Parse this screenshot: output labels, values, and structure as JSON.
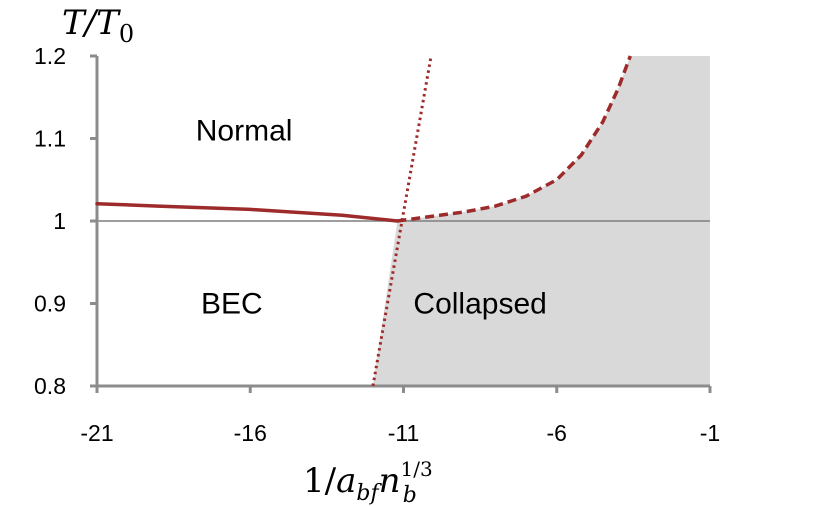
{
  "chart_data": {
    "type": "line",
    "xlabel": "1/a_bf n_b^1/3",
    "ylabel": "T/T0",
    "xlim": [
      -21,
      -1
    ],
    "ylim": [
      0.8,
      1.2
    ],
    "x_ticks": [
      "-21",
      "-16",
      "-11",
      "-6",
      "-1"
    ],
    "y_ticks": [
      "0.8",
      "0.9",
      "1",
      "1.1",
      "1.2"
    ],
    "grid": false,
    "reference_line_y": 1,
    "regions": [
      {
        "label": "Normal",
        "x": -16.2,
        "y": 1.11
      },
      {
        "label": "BEC",
        "x": -16.6,
        "y": 0.9
      },
      {
        "label": "Collapsed",
        "x": -8.5,
        "y": 0.9
      }
    ],
    "series": [
      {
        "style": "solid",
        "color": "#9e2b2b",
        "points": [
          [
            -21,
            1.021
          ],
          [
            -19,
            1.018
          ],
          [
            -16,
            1.014
          ],
          [
            -13,
            1.007
          ],
          [
            -11.2,
            1.0
          ]
        ]
      },
      {
        "style": "dashed",
        "color": "#9e2b2b",
        "points": [
          [
            -11.2,
            1.0
          ],
          [
            -10,
            1.006
          ],
          [
            -9,
            1.011
          ],
          [
            -8,
            1.018
          ],
          [
            -7,
            1.03
          ],
          [
            -6,
            1.05
          ],
          [
            -5.2,
            1.08
          ],
          [
            -4.5,
            1.12
          ],
          [
            -4,
            1.16
          ],
          [
            -3.7,
            1.19
          ],
          [
            -3.6,
            1.2
          ]
        ]
      },
      {
        "style": "dotted",
        "color": "#9e2b2b",
        "points": [
          [
            -12.0,
            0.8
          ],
          [
            -10.1,
            1.2
          ]
        ]
      }
    ],
    "shaded_region": {
      "color": "#d9d9d9",
      "description": "collapsed",
      "lower_y": 0.8,
      "left_boundary": [
        [
          -12.0,
          0.8
        ],
        [
          -11.2,
          1.0
        ]
      ],
      "upper_boundary_series_index": 1,
      "right_x": -1
    }
  }
}
